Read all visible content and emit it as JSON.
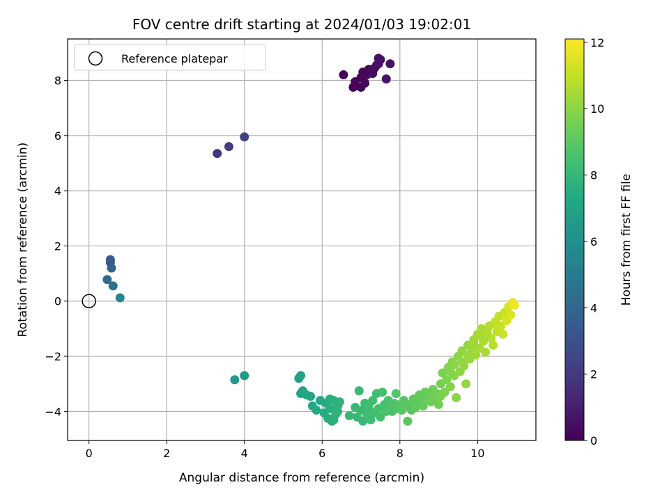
{
  "chart_data": {
    "type": "scatter",
    "title": "FOV centre drift starting at 2024/01/03 19:02:01",
    "xlabel": "Angular distance from reference (arcmin)",
    "ylabel": "Rotation from reference (arcmin)",
    "xlim": [
      -0.55,
      11.5
    ],
    "ylim": [
      -5.05,
      9.5
    ],
    "xticks": [
      0,
      2,
      4,
      6,
      8,
      10
    ],
    "yticks": [
      -4,
      -2,
      0,
      2,
      4,
      6,
      8
    ],
    "xtick_labels": [
      "0",
      "2",
      "4",
      "6",
      "8",
      "10"
    ],
    "ytick_labels": [
      "−4",
      "−2",
      "0",
      "2",
      "4",
      "6",
      "8"
    ],
    "grid": true,
    "colormap": "viridis",
    "colorbar": {
      "label": "Hours from first FF file",
      "range": [
        0,
        12.1
      ],
      "ticks": [
        0,
        2,
        4,
        6,
        8,
        10,
        12
      ],
      "tick_labels": [
        "0",
        "2",
        "4",
        "6",
        "8",
        "10",
        "12"
      ]
    },
    "legend": {
      "position": "top-left",
      "entries": [
        {
          "label": "Reference platepar",
          "marker": "open-circle",
          "color": "#000000"
        }
      ]
    },
    "reference_point": {
      "x": 0,
      "y": 0
    },
    "points": [
      {
        "x": 6.55,
        "y": 8.2,
        "c": 0.05
      },
      {
        "x": 6.8,
        "y": 7.75,
        "c": 0.08
      },
      {
        "x": 6.85,
        "y": 7.95,
        "c": 0.1
      },
      {
        "x": 7.0,
        "y": 7.75,
        "c": 0.12
      },
      {
        "x": 7.0,
        "y": 8.1,
        "c": 0.15
      },
      {
        "x": 7.05,
        "y": 8.3,
        "c": 0.2
      },
      {
        "x": 7.1,
        "y": 7.9,
        "c": 0.22
      },
      {
        "x": 7.15,
        "y": 8.2,
        "c": 0.25
      },
      {
        "x": 7.2,
        "y": 8.4,
        "c": 0.3
      },
      {
        "x": 7.3,
        "y": 8.25,
        "c": 0.35
      },
      {
        "x": 7.35,
        "y": 8.45,
        "c": 0.4
      },
      {
        "x": 7.4,
        "y": 8.55,
        "c": 0.45
      },
      {
        "x": 7.45,
        "y": 8.8,
        "c": 0.5
      },
      {
        "x": 7.5,
        "y": 8.75,
        "c": 0.52
      },
      {
        "x": 7.45,
        "y": 8.6,
        "c": 0.55
      },
      {
        "x": 7.65,
        "y": 8.05,
        "c": 0.6
      },
      {
        "x": 7.75,
        "y": 8.6,
        "c": 0.65
      },
      {
        "x": 3.3,
        "y": 5.35,
        "c": 1.85
      },
      {
        "x": 3.6,
        "y": 5.6,
        "c": 2.1
      },
      {
        "x": 4.0,
        "y": 5.95,
        "c": 2.35
      },
      {
        "x": 0.55,
        "y": 1.5,
        "c": 3.3
      },
      {
        "x": 0.55,
        "y": 1.4,
        "c": 3.45
      },
      {
        "x": 0.58,
        "y": 1.2,
        "c": 3.65
      },
      {
        "x": 0.47,
        "y": 0.78,
        "c": 4.2
      },
      {
        "x": 0.62,
        "y": 0.55,
        "c": 4.6
      },
      {
        "x": 0.8,
        "y": 0.12,
        "c": 5.5
      },
      {
        "x": 3.75,
        "y": -2.85,
        "c": 6.4
      },
      {
        "x": 4.0,
        "y": -2.7,
        "c": 6.5
      },
      {
        "x": 5.4,
        "y": -2.8,
        "c": 6.85
      },
      {
        "x": 5.45,
        "y": -2.7,
        "c": 6.9
      },
      {
        "x": 5.45,
        "y": -3.35,
        "c": 7.0
      },
      {
        "x": 5.5,
        "y": -3.25,
        "c": 7.05
      },
      {
        "x": 5.6,
        "y": -3.4,
        "c": 7.1
      },
      {
        "x": 5.7,
        "y": -3.45,
        "c": 7.15
      },
      {
        "x": 5.75,
        "y": -3.8,
        "c": 7.2
      },
      {
        "x": 5.85,
        "y": -3.95,
        "c": 7.3
      },
      {
        "x": 5.95,
        "y": -3.6,
        "c": 7.3
      },
      {
        "x": 6.05,
        "y": -4.05,
        "c": 7.4
      },
      {
        "x": 6.1,
        "y": -3.7,
        "c": 7.45
      },
      {
        "x": 6.15,
        "y": -4.25,
        "c": 7.5
      },
      {
        "x": 6.2,
        "y": -3.9,
        "c": 7.55
      },
      {
        "x": 6.25,
        "y": -4.35,
        "c": 7.6
      },
      {
        "x": 6.3,
        "y": -3.6,
        "c": 7.65
      },
      {
        "x": 6.35,
        "y": -4.1,
        "c": 7.7
      },
      {
        "x": 6.4,
        "y": -3.8,
        "c": 7.75
      },
      {
        "x": 6.45,
        "y": -3.65,
        "c": 7.8
      },
      {
        "x": 6.2,
        "y": -3.55,
        "c": 7.6
      },
      {
        "x": 6.3,
        "y": -4.3,
        "c": 7.7
      },
      {
        "x": 6.4,
        "y": -4.0,
        "c": 7.8
      },
      {
        "x": 6.7,
        "y": -4.15,
        "c": 8.0
      },
      {
        "x": 6.85,
        "y": -3.85,
        "c": 8.05
      },
      {
        "x": 6.9,
        "y": -4.2,
        "c": 8.1
      },
      {
        "x": 6.95,
        "y": -3.25,
        "c": 8.1
      },
      {
        "x": 7.0,
        "y": -3.95,
        "c": 8.15
      },
      {
        "x": 7.05,
        "y": -4.35,
        "c": 8.2
      },
      {
        "x": 7.1,
        "y": -3.7,
        "c": 8.2
      },
      {
        "x": 7.15,
        "y": -4.1,
        "c": 8.25
      },
      {
        "x": 7.2,
        "y": -3.85,
        "c": 8.3
      },
      {
        "x": 7.25,
        "y": -4.3,
        "c": 8.3
      },
      {
        "x": 7.3,
        "y": -3.6,
        "c": 8.35
      },
      {
        "x": 7.35,
        "y": -4.05,
        "c": 8.4
      },
      {
        "x": 7.4,
        "y": -3.35,
        "c": 8.4
      },
      {
        "x": 7.45,
        "y": -3.9,
        "c": 8.45
      },
      {
        "x": 7.5,
        "y": -4.2,
        "c": 8.5
      },
      {
        "x": 7.55,
        "y": -3.3,
        "c": 8.5
      },
      {
        "x": 7.6,
        "y": -3.75,
        "c": 8.55
      },
      {
        "x": 7.65,
        "y": -4.0,
        "c": 8.6
      },
      {
        "x": 7.7,
        "y": -3.6,
        "c": 8.6
      },
      {
        "x": 7.75,
        "y": -3.85,
        "c": 8.65
      },
      {
        "x": 7.8,
        "y": -4.0,
        "c": 8.7
      },
      {
        "x": 7.85,
        "y": -3.7,
        "c": 8.75
      },
      {
        "x": 7.9,
        "y": -3.35,
        "c": 8.8
      },
      {
        "x": 7.95,
        "y": -3.9,
        "c": 8.8
      },
      {
        "x": 8.0,
        "y": -3.75,
        "c": 8.85
      },
      {
        "x": 8.05,
        "y": -3.95,
        "c": 8.9
      },
      {
        "x": 8.1,
        "y": -3.6,
        "c": 8.9
      },
      {
        "x": 8.15,
        "y": -3.8,
        "c": 8.95
      },
      {
        "x": 8.2,
        "y": -4.35,
        "c": 8.95
      },
      {
        "x": 8.25,
        "y": -3.75,
        "c": 9.0
      },
      {
        "x": 8.3,
        "y": -3.95,
        "c": 9.0
      },
      {
        "x": 8.35,
        "y": -3.55,
        "c": 9.05
      },
      {
        "x": 8.4,
        "y": -3.85,
        "c": 9.1
      },
      {
        "x": 8.45,
        "y": -3.7,
        "c": 9.1
      },
      {
        "x": 8.5,
        "y": -3.4,
        "c": 9.15
      },
      {
        "x": 8.55,
        "y": -3.6,
        "c": 9.2
      },
      {
        "x": 8.6,
        "y": -3.8,
        "c": 9.2
      },
      {
        "x": 8.65,
        "y": -3.3,
        "c": 9.25
      },
      {
        "x": 8.7,
        "y": -3.55,
        "c": 9.3
      },
      {
        "x": 8.75,
        "y": -3.45,
        "c": 9.35
      },
      {
        "x": 8.8,
        "y": -3.65,
        "c": 9.35
      },
      {
        "x": 8.85,
        "y": -3.2,
        "c": 9.4
      },
      {
        "x": 8.9,
        "y": -3.5,
        "c": 9.45
      },
      {
        "x": 8.95,
        "y": -3.35,
        "c": 9.5
      },
      {
        "x": 9.0,
        "y": -3.75,
        "c": 9.5
      },
      {
        "x": 9.05,
        "y": -3.0,
        "c": 9.55
      },
      {
        "x": 9.05,
        "y": -3.45,
        "c": 9.6
      },
      {
        "x": 9.1,
        "y": -2.6,
        "c": 9.65
      },
      {
        "x": 9.15,
        "y": -3.3,
        "c": 9.7
      },
      {
        "x": 9.2,
        "y": -2.85,
        "c": 9.75
      },
      {
        "x": 9.25,
        "y": -2.4,
        "c": 9.8
      },
      {
        "x": 9.3,
        "y": -3.1,
        "c": 9.85
      },
      {
        "x": 9.35,
        "y": -2.2,
        "c": 9.9
      },
      {
        "x": 9.4,
        "y": -2.7,
        "c": 9.95
      },
      {
        "x": 9.45,
        "y": -3.5,
        "c": 9.95
      },
      {
        "x": 9.5,
        "y": -2.0,
        "c": 10.0
      },
      {
        "x": 9.55,
        "y": -2.55,
        "c": 10.05
      },
      {
        "x": 9.6,
        "y": -1.8,
        "c": 10.1
      },
      {
        "x": 9.65,
        "y": -2.35,
        "c": 10.15
      },
      {
        "x": 9.7,
        "y": -3.0,
        "c": 10.15
      },
      {
        "x": 9.75,
        "y": -1.6,
        "c": 10.2
      },
      {
        "x": 9.8,
        "y": -2.1,
        "c": 10.25
      },
      {
        "x": 9.85,
        "y": -1.85,
        "c": 10.3
      },
      {
        "x": 9.9,
        "y": -1.4,
        "c": 10.35
      },
      {
        "x": 9.95,
        "y": -1.95,
        "c": 10.4
      },
      {
        "x": 10.0,
        "y": -1.2,
        "c": 10.45
      },
      {
        "x": 10.05,
        "y": -1.7,
        "c": 10.5
      },
      {
        "x": 10.1,
        "y": -1.0,
        "c": 10.55
      },
      {
        "x": 10.15,
        "y": -1.45,
        "c": 10.6
      },
      {
        "x": 10.2,
        "y": -1.85,
        "c": 10.6
      },
      {
        "x": 10.25,
        "y": -1.15,
        "c": 10.7
      },
      {
        "x": 10.3,
        "y": -0.9,
        "c": 10.75
      },
      {
        "x": 10.35,
        "y": -1.35,
        "c": 10.8
      },
      {
        "x": 10.4,
        "y": -1.6,
        "c": 10.85
      },
      {
        "x": 10.45,
        "y": -0.75,
        "c": 10.9
      },
      {
        "x": 10.5,
        "y": -1.1,
        "c": 10.95
      },
      {
        "x": 10.55,
        "y": -0.55,
        "c": 11.0
      },
      {
        "x": 10.6,
        "y": -0.9,
        "c": 11.1
      },
      {
        "x": 10.65,
        "y": -1.2,
        "c": 11.15
      },
      {
        "x": 10.7,
        "y": -0.4,
        "c": 11.2
      },
      {
        "x": 10.75,
        "y": -0.7,
        "c": 11.3
      },
      {
        "x": 10.8,
        "y": -0.2,
        "c": 11.4
      },
      {
        "x": 10.85,
        "y": -0.5,
        "c": 11.5
      },
      {
        "x": 10.9,
        "y": -0.05,
        "c": 11.7
      },
      {
        "x": 10.95,
        "y": -0.15,
        "c": 11.9
      },
      {
        "x": 9.3,
        "y": -2.55,
        "c": 9.85
      },
      {
        "x": 9.6,
        "y": -2.2,
        "c": 10.1
      },
      {
        "x": 9.9,
        "y": -1.6,
        "c": 10.35
      },
      {
        "x": 10.2,
        "y": -1.3,
        "c": 10.6
      },
      {
        "x": 10.5,
        "y": -0.85,
        "c": 10.95
      },
      {
        "x": 10.1,
        "y": -1.3,
        "c": 10.55
      },
      {
        "x": 9.75,
        "y": -1.95,
        "c": 10.2
      },
      {
        "x": 9.4,
        "y": -2.3,
        "c": 9.95
      }
    ]
  }
}
